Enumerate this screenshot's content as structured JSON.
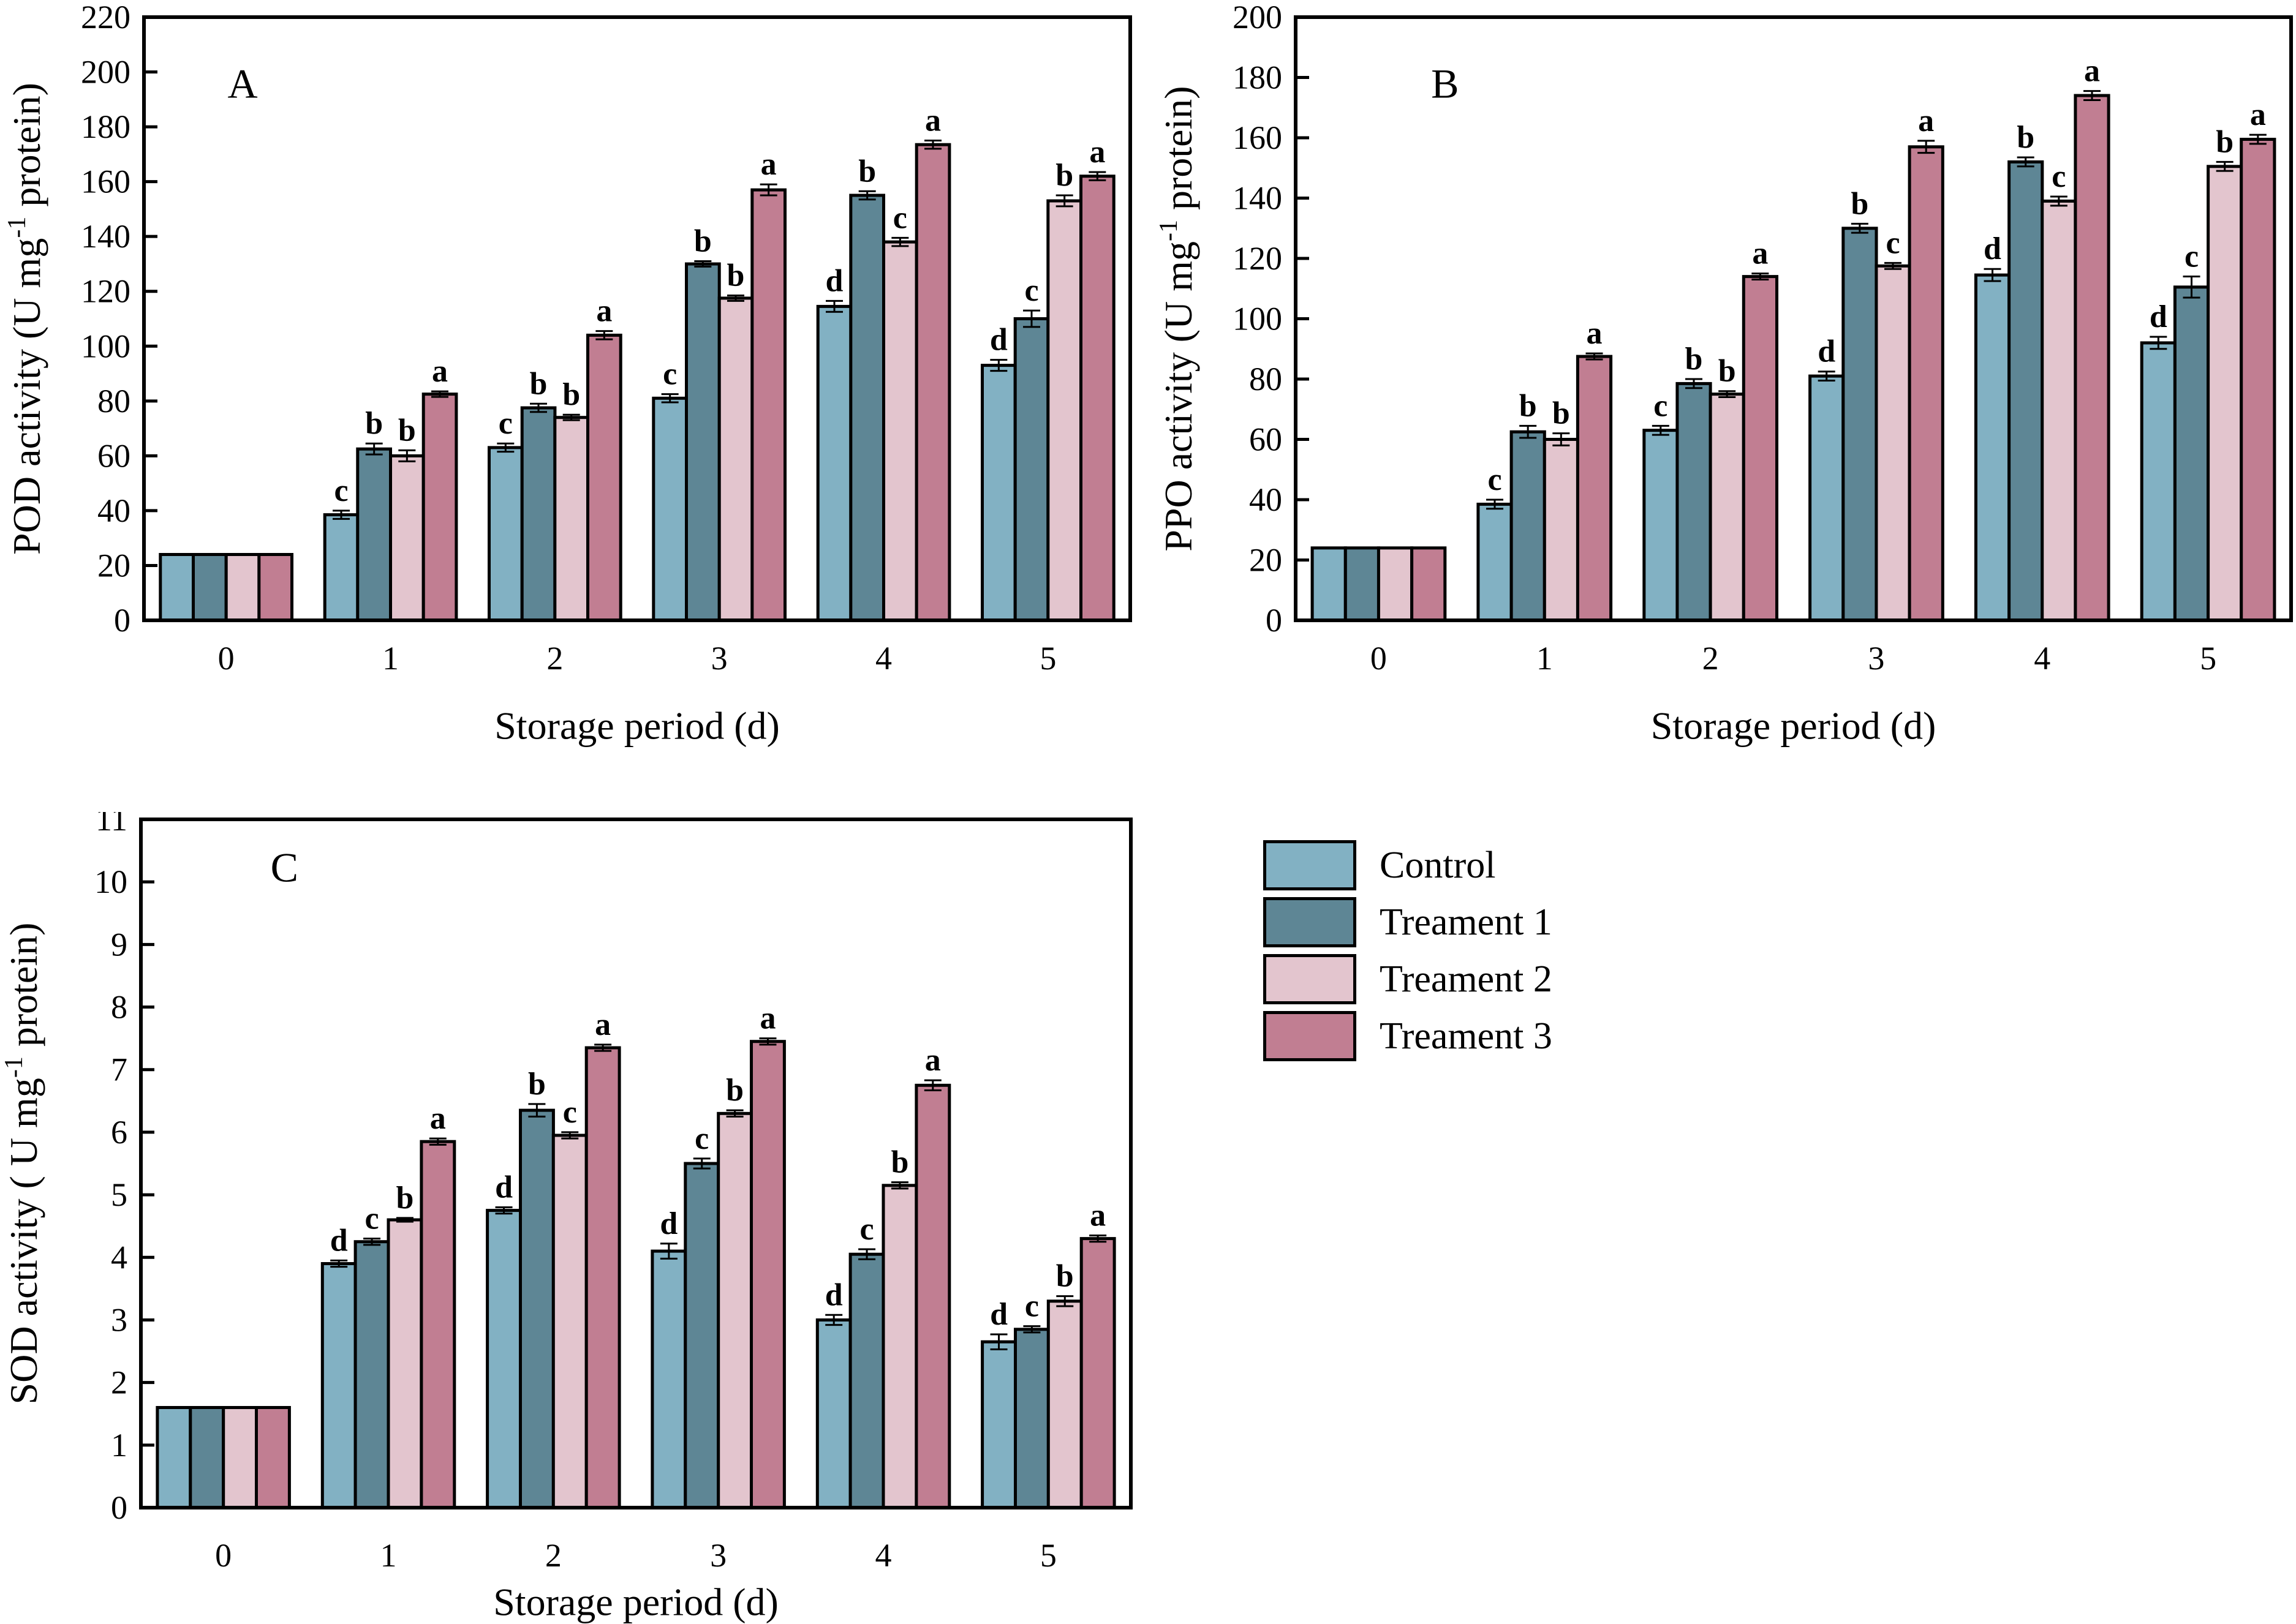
{
  "figure": {
    "background": "#ffffff"
  },
  "colors": {
    "control": "#82b1c3",
    "treatment1": "#5e8695",
    "treatment2": "#e3c5ce",
    "treatment3": "#c17e92",
    "axis": "#000000"
  },
  "legend": {
    "items": [
      {
        "label": "Control",
        "color_key": "control"
      },
      {
        "label": "Treament 1",
        "color_key": "treatment1"
      },
      {
        "label": "Treament 2",
        "color_key": "treatment2"
      },
      {
        "label": "Treament 3",
        "color_key": "treatment3"
      }
    ]
  },
  "chart_data": [
    {
      "id": "A",
      "type": "bar",
      "panel_label": "A",
      "ylabel_pre": "POD activity (U mg",
      "ylabel_sup": "-1",
      "ylabel_post": " protein)",
      "xlabel": "Storage period (d)",
      "ylim": [
        0,
        220
      ],
      "ytick_step": 20,
      "yticks": [
        "0",
        "20",
        "40",
        "60",
        "80",
        "100",
        "120",
        "140",
        "160",
        "180",
        "200",
        "220"
      ],
      "categories": [
        "0",
        "1",
        "2",
        "3",
        "4",
        "5"
      ],
      "grid": false,
      "series": [
        {
          "name": "Control",
          "color_key": "control",
          "values": [
            24,
            38.5,
            63,
            81,
            114.5,
            93
          ],
          "errors": [
            0,
            1.5,
            1.5,
            1.5,
            2,
            2
          ],
          "letters": [
            "",
            "c",
            "c",
            "c",
            "d",
            "d"
          ]
        },
        {
          "name": "Treament 1",
          "color_key": "treatment1",
          "values": [
            24,
            62.5,
            77.5,
            130,
            155,
            110
          ],
          "errors": [
            0,
            2,
            1.5,
            1,
            1.5,
            3
          ],
          "letters": [
            "",
            "b",
            "b",
            "b",
            "b",
            "c"
          ]
        },
        {
          "name": "Treament 2",
          "color_key": "treatment2",
          "values": [
            24,
            60,
            74,
            117.5,
            138,
            153
          ],
          "errors": [
            0,
            2,
            1,
            1,
            1.5,
            2
          ],
          "letters": [
            "",
            "b",
            "b",
            "b",
            "c",
            "b"
          ]
        },
        {
          "name": "Treament 3",
          "color_key": "treatment3",
          "values": [
            24,
            82.5,
            104,
            157,
            173.5,
            162
          ],
          "errors": [
            0,
            1,
            1.5,
            2,
            1.5,
            1.5
          ],
          "letters": [
            "",
            "a",
            "a",
            "a",
            "a",
            "a"
          ]
        }
      ]
    },
    {
      "id": "B",
      "type": "bar",
      "panel_label": "B",
      "ylabel_pre": "PPO activity (U mg",
      "ylabel_sup": "-1",
      "ylabel_post": " protein)",
      "xlabel": "Storage period (d)",
      "ylim": [
        0,
        200
      ],
      "ytick_step": 20,
      "yticks": [
        "0",
        "20",
        "40",
        "60",
        "80",
        "100",
        "120",
        "140",
        "160",
        "180",
        "200"
      ],
      "categories": [
        "0",
        "1",
        "2",
        "3",
        "4",
        "5"
      ],
      "grid": false,
      "series": [
        {
          "name": "Control",
          "color_key": "control",
          "values": [
            24,
            38.5,
            63,
            81,
            114.5,
            92
          ],
          "errors": [
            0,
            1.5,
            1.5,
            1.5,
            2,
            2
          ],
          "letters": [
            "",
            "c",
            "c",
            "d",
            "d",
            "d"
          ]
        },
        {
          "name": "Treament 1",
          "color_key": "treatment1",
          "values": [
            24,
            62.5,
            78.5,
            130,
            152,
            110.5
          ],
          "errors": [
            0,
            2,
            1.5,
            1.5,
            1.5,
            3.5
          ],
          "letters": [
            "",
            "b",
            "b",
            "b",
            "b",
            "c"
          ]
        },
        {
          "name": "Treament 2",
          "color_key": "treatment2",
          "values": [
            24,
            60,
            75,
            117.5,
            139,
            150.5
          ],
          "errors": [
            0,
            2,
            1,
            1,
            1.5,
            1.5
          ],
          "letters": [
            "",
            "b",
            "b",
            "c",
            "c",
            "b"
          ]
        },
        {
          "name": "Treament 3",
          "color_key": "treatment3",
          "values": [
            24,
            87.5,
            114,
            157,
            174,
            159.5
          ],
          "errors": [
            0,
            1,
            1,
            2,
            1.5,
            1.5
          ],
          "letters": [
            "",
            "a",
            "a",
            "a",
            "a",
            "a"
          ]
        }
      ]
    },
    {
      "id": "C",
      "type": "bar",
      "panel_label": "C",
      "ylabel_pre": "SOD activity ( U mg",
      "ylabel_sup": "-1",
      "ylabel_post": " protein)",
      "xlabel": "Storage period (d)",
      "ylim": [
        0,
        11
      ],
      "ytick_step": 1,
      "yticks": [
        "0",
        "1",
        "2",
        "3",
        "4",
        "5",
        "6",
        "7",
        "8",
        "9",
        "10",
        "11"
      ],
      "categories": [
        "0",
        "1",
        "2",
        "3",
        "4",
        "5"
      ],
      "grid": false,
      "series": [
        {
          "name": "Control",
          "color_key": "control",
          "values": [
            1.6,
            3.9,
            4.75,
            4.1,
            3.0,
            2.65
          ],
          "errors": [
            0,
            0.05,
            0.05,
            0.12,
            0.08,
            0.12
          ],
          "letters": [
            "",
            "d",
            "d",
            "d",
            "d",
            "d"
          ]
        },
        {
          "name": "Treament 1",
          "color_key": "treatment1",
          "values": [
            1.6,
            4.25,
            6.35,
            5.5,
            4.05,
            2.85
          ],
          "errors": [
            0,
            0.05,
            0.1,
            0.08,
            0.08,
            0.05
          ],
          "letters": [
            "",
            "c",
            "b",
            "c",
            "c",
            "c"
          ]
        },
        {
          "name": "Treament 2",
          "color_key": "treatment2",
          "values": [
            1.6,
            4.6,
            5.95,
            6.3,
            5.15,
            3.3
          ],
          "errors": [
            0,
            0.03,
            0.05,
            0.05,
            0.05,
            0.08
          ],
          "letters": [
            "",
            "b",
            "c",
            "b",
            "b",
            "b"
          ]
        },
        {
          "name": "Treament 3",
          "color_key": "treatment3",
          "values": [
            1.6,
            5.85,
            7.35,
            7.45,
            6.75,
            4.3
          ],
          "errors": [
            0,
            0.05,
            0.05,
            0.05,
            0.08,
            0.05
          ],
          "letters": [
            "",
            "a",
            "a",
            "a",
            "a",
            "a"
          ]
        }
      ]
    }
  ]
}
